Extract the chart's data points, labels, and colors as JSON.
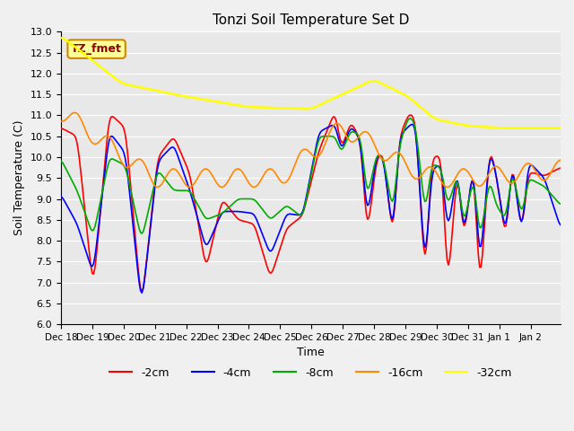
{
  "title": "Tonzi Soil Temperature Set D",
  "xlabel": "Time",
  "ylabel": "Soil Temperature (C)",
  "ylim": [
    6.0,
    13.0
  ],
  "yticks": [
    6.0,
    6.5,
    7.0,
    7.5,
    8.0,
    8.5,
    9.0,
    9.5,
    10.0,
    10.5,
    11.0,
    11.5,
    12.0,
    12.5,
    13.0
  ],
  "legend_labels": [
    "-2cm",
    "-4cm",
    "-8cm",
    "-16cm",
    "-32cm"
  ],
  "legend_colors": [
    "#ff0000",
    "#0000ff",
    "#00aa00",
    "#ff8800",
    "#ffff00"
  ],
  "annotation_text": "TZ_fmet",
  "annotation_bg": "#ffff99",
  "annotation_border": "#cc8800",
  "background_color": "#e8e8e8",
  "grid_color": "#ffffff"
}
